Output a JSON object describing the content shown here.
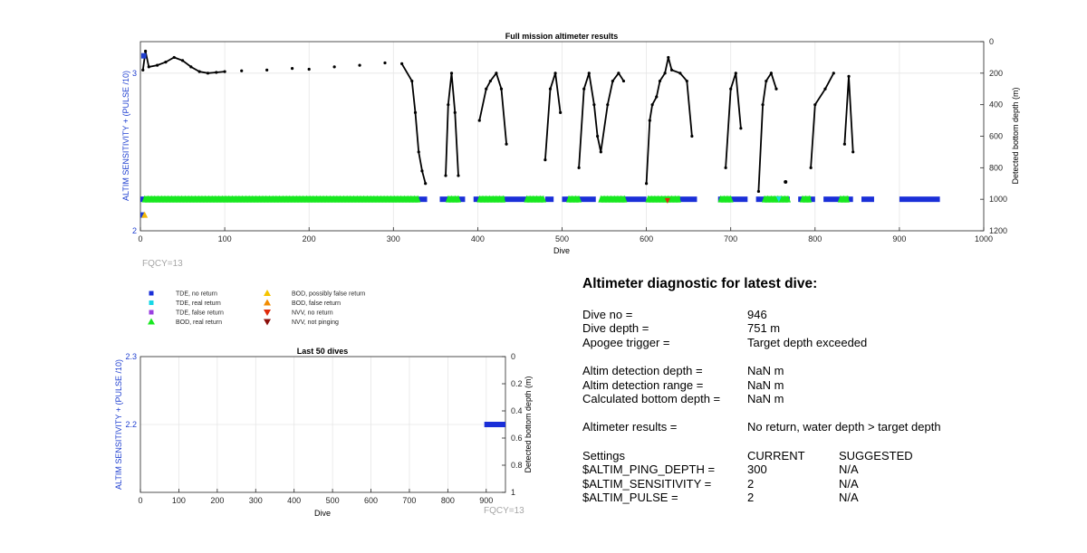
{
  "chart_data": [
    {
      "type": "scatter",
      "title": "Full mission altimeter results",
      "xlabel": "Dive",
      "ylabel_left": "ALTIM SENSITIVITY + (PULSE /10)",
      "ylabel_right": "Detected bottom depth (m)",
      "xlim": [
        0,
        1000
      ],
      "ylim_left": [
        2,
        3.2
      ],
      "ylim_right_reversed": [
        0,
        1200
      ],
      "x_ticks": [
        "0",
        "100",
        "200",
        "300",
        "400",
        "500",
        "600",
        "700",
        "800",
        "900",
        "1000"
      ],
      "y_ticks_left": [
        "2",
        "3"
      ],
      "y_ticks_right": [
        "0",
        "200",
        "400",
        "600",
        "800",
        "1000",
        "1200"
      ],
      "grid": true,
      "annotation": "FQCY=13",
      "settings_series": [
        {
          "x": [
            1,
            7
          ],
          "y": [
            3.11,
            3.11
          ],
          "color": "#1f3fd0"
        },
        {
          "x": [
            0,
            3
          ],
          "y": [
            2.1,
            2.1
          ],
          "color": "#1f3fd0"
        },
        {
          "x": [
            5
          ],
          "y": [
            2.1
          ],
          "color": "#f2b705"
        }
      ],
      "bottom_depth_profile": {
        "x": [
          3,
          6,
          10,
          20,
          30,
          40,
          50,
          60,
          70,
          80,
          90,
          100,
          120,
          150,
          180,
          200,
          230,
          260,
          290,
          310,
          322,
          326,
          330,
          334,
          338,
          362,
          365,
          369,
          373,
          377,
          402,
          410,
          415,
          422,
          428,
          434,
          480,
          486,
          492,
          498,
          520,
          526,
          532,
          538,
          542,
          546,
          554,
          560,
          567,
          573,
          600,
          604,
          607,
          612,
          616,
          622,
          626,
          630,
          640,
          648,
          654,
          694,
          700,
          706,
          712,
          733,
          738,
          742,
          748,
          754,
          795,
          800,
          812,
          822,
          835,
          840,
          845
        ],
        "y": [
          180,
          60,
          160,
          150,
          130,
          100,
          120,
          160,
          190,
          200,
          195,
          190,
          185,
          180,
          170,
          175,
          160,
          150,
          135,
          140,
          250,
          450,
          700,
          820,
          900,
          850,
          400,
          200,
          450,
          850,
          500,
          300,
          250,
          200,
          300,
          650,
          750,
          300,
          200,
          450,
          800,
          300,
          200,
          400,
          600,
          700,
          400,
          250,
          200,
          250,
          900,
          500,
          400,
          350,
          250,
          200,
          100,
          180,
          200,
          250,
          600,
          800,
          300,
          200,
          550,
          950,
          400,
          250,
          200,
          300,
          800,
          400,
          300,
          200,
          650,
          220,
          700
        ]
      },
      "returns": {
        "legend_names": [
          "TDE, no return",
          "TDE, real return",
          "TDE, false return",
          "BOD, real return",
          "BOD, possibly false return",
          "BOD, false return",
          "NVV, no return",
          "NVV, not pinging"
        ],
        "legend_colors": [
          "#1a2fd8",
          "#17d7e6",
          "#9a3fe0",
          "#18e820",
          "#f5c400",
          "#f28c00",
          "#e02a0a",
          "#8c0e0a"
        ],
        "depth_m": 1000,
        "no_return_segments": [
          [
            0,
            10
          ],
          [
            330,
            340
          ],
          [
            355,
            385
          ],
          [
            395,
            470
          ],
          [
            480,
            490
          ],
          [
            500,
            540
          ],
          [
            550,
            600
          ],
          [
            610,
            660
          ],
          [
            685,
            720
          ],
          [
            730,
            770
          ],
          [
            780,
            800
          ],
          [
            810,
            845
          ],
          [
            855,
            870
          ],
          [
            900,
            948
          ]
        ],
        "real_return_segments": [
          [
            5,
            330
          ],
          [
            365,
            378
          ],
          [
            402,
            432
          ],
          [
            458,
            478
          ],
          [
            508,
            520
          ],
          [
            546,
            575
          ],
          [
            602,
            640
          ],
          [
            688,
            700
          ],
          [
            740,
            768
          ],
          [
            785,
            795
          ],
          [
            830,
            840
          ]
        ],
        "other_points": [
          {
            "x": 625,
            "y": 1010,
            "color": "#e02a0a"
          },
          {
            "x": 757,
            "y": 1000,
            "color": "#17d7e6"
          }
        ]
      }
    },
    {
      "type": "scatter",
      "title": "Last 50 dives",
      "xlabel": "Dive",
      "ylabel_left": "ALTIM SENSITIVITY + (PULSE /10)",
      "ylabel_right": "Detected bottom depth (m)",
      "xlim": [
        0,
        950
      ],
      "ylim_left": [
        2.1,
        2.3
      ],
      "ylim_right_reversed": [
        0,
        1
      ],
      "x_ticks": [
        "0",
        "100",
        "200",
        "300",
        "400",
        "500",
        "600",
        "700",
        "800",
        "900"
      ],
      "y_ticks_left": [
        "2.2",
        "2.3"
      ],
      "y_ticks_right": [
        "0",
        "0.2",
        "0.4",
        "0.6",
        "0.8",
        "1"
      ],
      "grid": true,
      "annotation": "FQCY=13",
      "series": [
        {
          "x": [
            895,
            950
          ],
          "y": [
            2.2,
            2.2
          ],
          "color": "#1a2fd8"
        }
      ]
    }
  ],
  "diagnostic": {
    "title": "Altimeter diagnostic for latest dive:",
    "rows1": [
      {
        "label": "Dive no =",
        "value": "946"
      },
      {
        "label": "Dive depth =",
        "value": "751 m"
      },
      {
        "label": "Apogee trigger =",
        "value": "Target depth exceeded"
      }
    ],
    "rows2": [
      {
        "label": "Altim detection depth =",
        "value": "NaN m"
      },
      {
        "label": "Altim detection range =",
        "value": "NaN m"
      },
      {
        "label": "Calculated bottom depth =",
        "value": "NaN m"
      }
    ],
    "rows3": [
      {
        "label": "Altimeter results =",
        "value": "No return, water depth > target depth"
      }
    ],
    "settings": {
      "header": [
        "Settings",
        "CURRENT",
        "SUGGESTED"
      ],
      "rows": [
        [
          "$ALTIM_PING_DEPTH =",
          "300",
          "N/A"
        ],
        [
          "$ALTIM_SENSITIVITY =",
          "2",
          "N/A"
        ],
        [
          "$ALTIM_PULSE =",
          "2",
          "N/A"
        ]
      ]
    }
  }
}
